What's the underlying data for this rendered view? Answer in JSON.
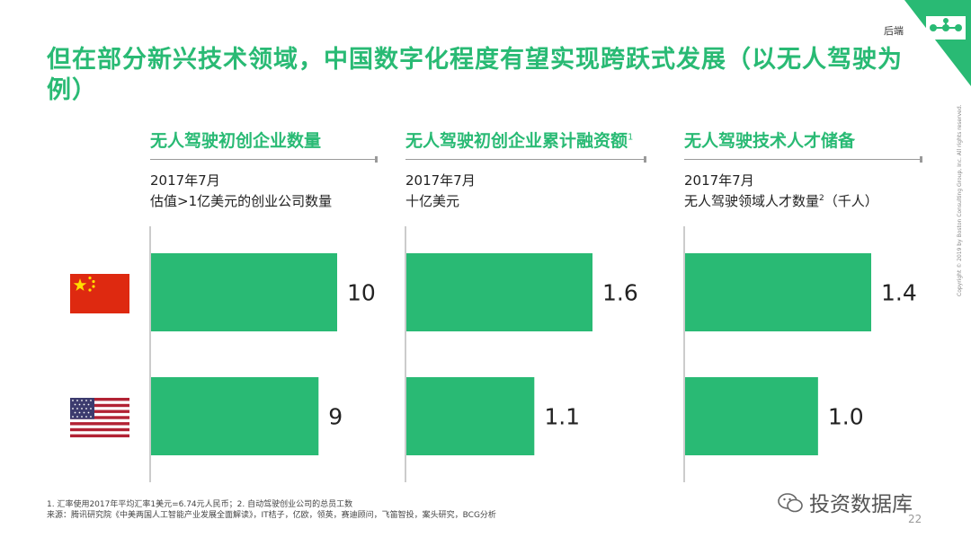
{
  "header": {
    "title": "但在部分新兴技术领域，中国数字化程度有望实现跨跃式发展（以无人驾驶为例）",
    "corner_label": "后端",
    "accent_color": "#29ba74"
  },
  "panels": [
    {
      "title": "无人驾驶初创企业数量",
      "title_sup": "",
      "sub1": "2017年7月",
      "sub2": "估值>1亿美元的创业公司数量",
      "sub2_sup": "",
      "sub2_tail": ""
    },
    {
      "title": "无人驾驶初创企业累计融资额",
      "title_sup": "1",
      "sub1": "2017年7月",
      "sub2": "十亿美元",
      "sub2_sup": "",
      "sub2_tail": ""
    },
    {
      "title": "无人驾驶技术人才储备",
      "title_sup": "",
      "sub1": "2017年7月",
      "sub2": "无人驾驶领域人才数量",
      "sub2_sup": "2",
      "sub2_tail": "（千人）"
    }
  ],
  "flags": {
    "cn": "china-flag-icon",
    "us": "usa-flag-icon"
  },
  "chart_data": [
    {
      "type": "bar",
      "orientation": "horizontal",
      "title": "无人驾驶初创企业数量",
      "xlabel": "估值>1亿美元的创业公司数量",
      "categories": [
        "中国",
        "美国"
      ],
      "values": [
        10,
        9
      ],
      "labels": [
        "10",
        "9"
      ],
      "xlim": [
        0,
        10
      ],
      "bar_color": "#29ba74"
    },
    {
      "type": "bar",
      "orientation": "horizontal",
      "title": "无人驾驶初创企业累计融资额",
      "xlabel": "十亿美元",
      "categories": [
        "中国",
        "美国"
      ],
      "values": [
        1.6,
        1.1
      ],
      "labels": [
        "1.6",
        "1.1"
      ],
      "xlim": [
        0,
        1.6
      ],
      "bar_color": "#29ba74"
    },
    {
      "type": "bar",
      "orientation": "horizontal",
      "title": "无人驾驶技术人才储备",
      "xlabel": "无人驾驶领域人才数量（千人）",
      "categories": [
        "中国",
        "美国"
      ],
      "values": [
        1.4,
        1.0
      ],
      "labels": [
        "1.4",
        "1.0"
      ],
      "xlim": [
        0,
        1.4
      ],
      "bar_color": "#29ba74"
    }
  ],
  "footnotes": {
    "line1": "1. 汇率使用2017年平均汇率1美元=6.74元人民币；2. 自动驾驶创业公司的总员工数",
    "line2": "来源：腾讯研究院《中美两国人工智能产业发展全面解读》，IT桔子，亿欧，领英，赛迪顾问，飞笛智投，案头研究，BCG分析"
  },
  "watermark": "投资数据库",
  "page_number": "22",
  "copyright": "Copyright © 2019 by Boston Consulting Group, Inc. All rights reserved."
}
